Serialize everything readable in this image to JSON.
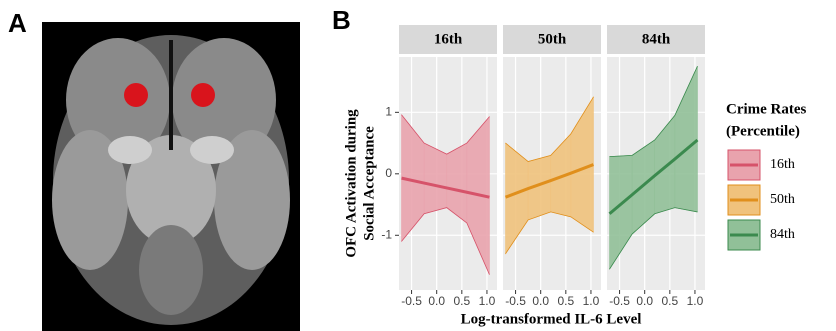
{
  "panels": {
    "a_label": "A",
    "b_label": "B"
  },
  "chart_data": {
    "type": "line",
    "facets": [
      "16th",
      "50th",
      "84th"
    ],
    "xlabel": "Log-transformed IL-6 Level",
    "ylabel": [
      "OFC Activation during",
      "Social Acceptance"
    ],
    "legend_title": [
      "Crime Rates",
      "(Percentile)"
    ],
    "xlim": [
      -0.75,
      1.2
    ],
    "ylim": [
      -1.89,
      1.9
    ],
    "xticks": [
      -0.5,
      {
        "value": 0,
        "label": "0.0"
      },
      0.5,
      {
        "value": 1,
        "label": "1.0"
      }
    ],
    "yticks": [
      -1,
      0,
      1
    ],
    "grid": true,
    "series": [
      {
        "name": "16th",
        "color": "#d6536a",
        "fill_color": "#e9a3ad",
        "x": [
          -0.7,
          -0.25,
          0.2,
          0.6,
          1.05
        ],
        "values": [
          -0.07,
          -0.15,
          -0.23,
          -0.3,
          -0.38
        ],
        "lower": [
          -1.1,
          -0.65,
          -0.55,
          -0.8,
          -1.64
        ],
        "upper": [
          0.96,
          0.5,
          0.32,
          0.5,
          0.93
        ]
      },
      {
        "name": "50th",
        "color": "#e08f1c",
        "fill_color": "#f0c27c",
        "x": [
          -0.7,
          -0.25,
          0.2,
          0.6,
          1.05
        ],
        "values": [
          -0.38,
          -0.24,
          -0.11,
          0.01,
          0.15
        ],
        "lower": [
          -1.3,
          -0.75,
          -0.62,
          -0.7,
          -0.95
        ],
        "upper": [
          0.5,
          0.2,
          0.3,
          0.65,
          1.25
        ]
      },
      {
        "name": "84th",
        "color": "#3b8a4e",
        "fill_color": "#91c098",
        "x": [
          -0.7,
          -0.25,
          0.2,
          0.6,
          1.05
        ],
        "values": [
          -0.65,
          -0.34,
          -0.03,
          0.24,
          0.55
        ],
        "lower": [
          -1.55,
          -0.98,
          -0.65,
          -0.55,
          -0.62
        ],
        "upper": [
          0.28,
          0.3,
          0.55,
          0.95,
          1.75
        ]
      }
    ]
  }
}
